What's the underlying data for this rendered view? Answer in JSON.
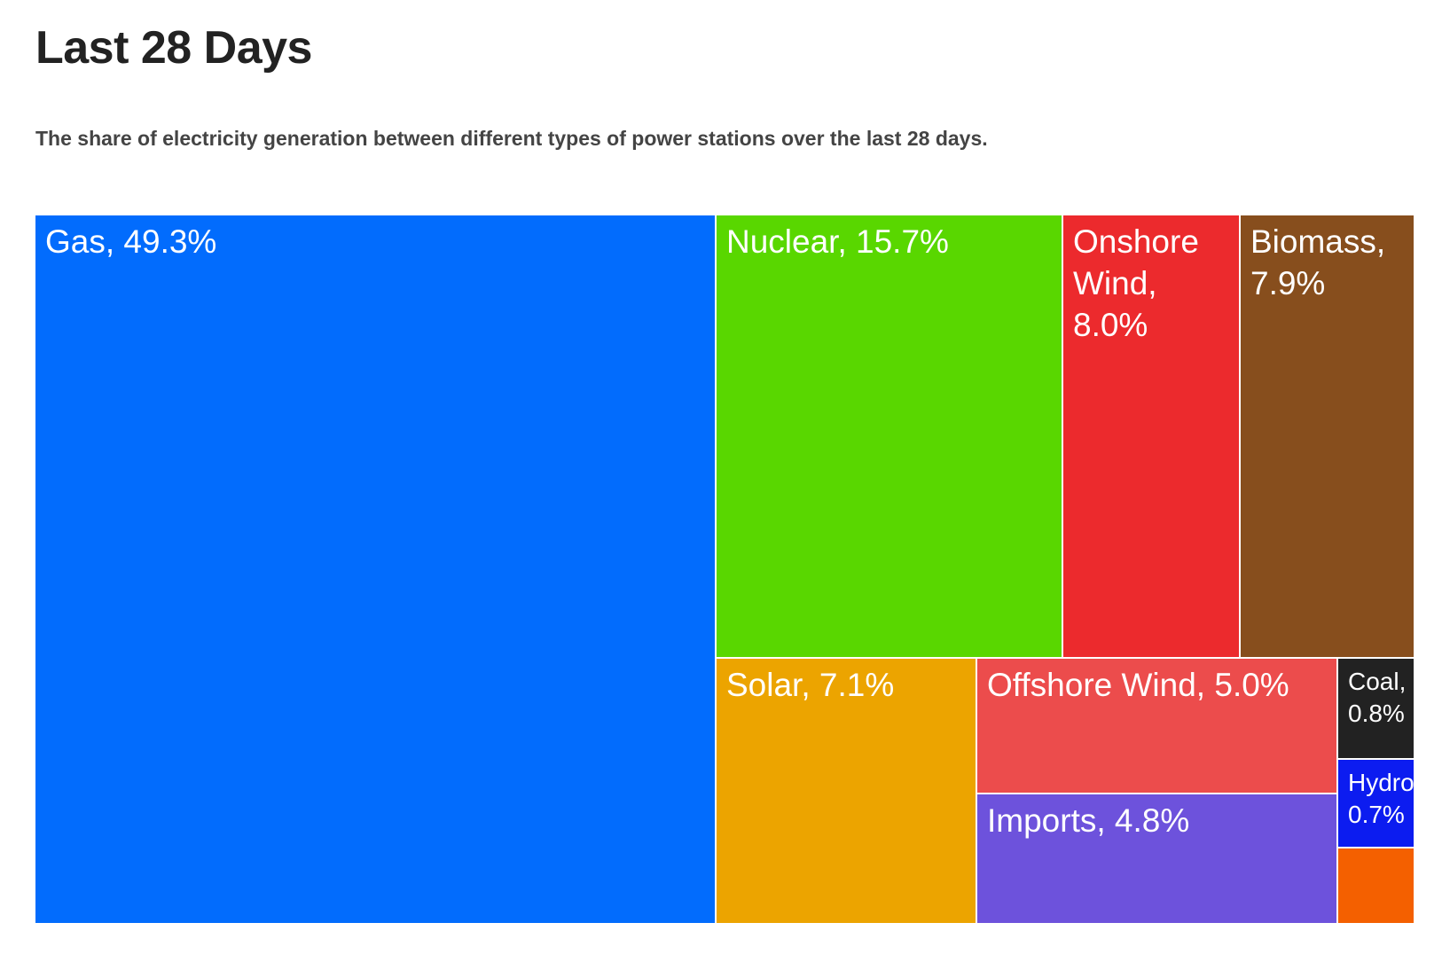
{
  "title": "Last 28 Days",
  "subtitle": "The share of electricity generation between different types of power stations over the last 28 days.",
  "chart_data": {
    "type": "treemap",
    "unit": "%",
    "items": [
      {
        "name": "Gas",
        "value": 49.3,
        "label": "Gas, 49.3%",
        "color": "#026cfd"
      },
      {
        "name": "Nuclear",
        "value": 15.7,
        "label": "Nuclear, 15.7%",
        "color": "#59d700"
      },
      {
        "name": "Onshore Wind",
        "value": 8.0,
        "label": "Onshore Wind, 8.0%",
        "color": "#ec2a2d"
      },
      {
        "name": "Biomass",
        "value": 7.9,
        "label": "Biomass, 7.9%",
        "color": "#874e1d"
      },
      {
        "name": "Solar",
        "value": 7.1,
        "label": "Solar, 7.1%",
        "color": "#eca400"
      },
      {
        "name": "Offshore Wind",
        "value": 5.0,
        "label": "Offshore Wind, 5.0%",
        "color": "#ec4c4c"
      },
      {
        "name": "Imports",
        "value": 4.8,
        "label": "Imports, 4.8%",
        "color": "#6d52dc"
      },
      {
        "name": "Coal",
        "value": 0.8,
        "label": "Coal, 0.8%",
        "color": "#222222"
      },
      {
        "name": "Hydro",
        "value": 0.7,
        "label": "Hydro, 0.7%",
        "color": "#0c1cf0"
      },
      {
        "name": "",
        "value": 0.6,
        "label": "",
        "color": "#f46000"
      }
    ]
  }
}
